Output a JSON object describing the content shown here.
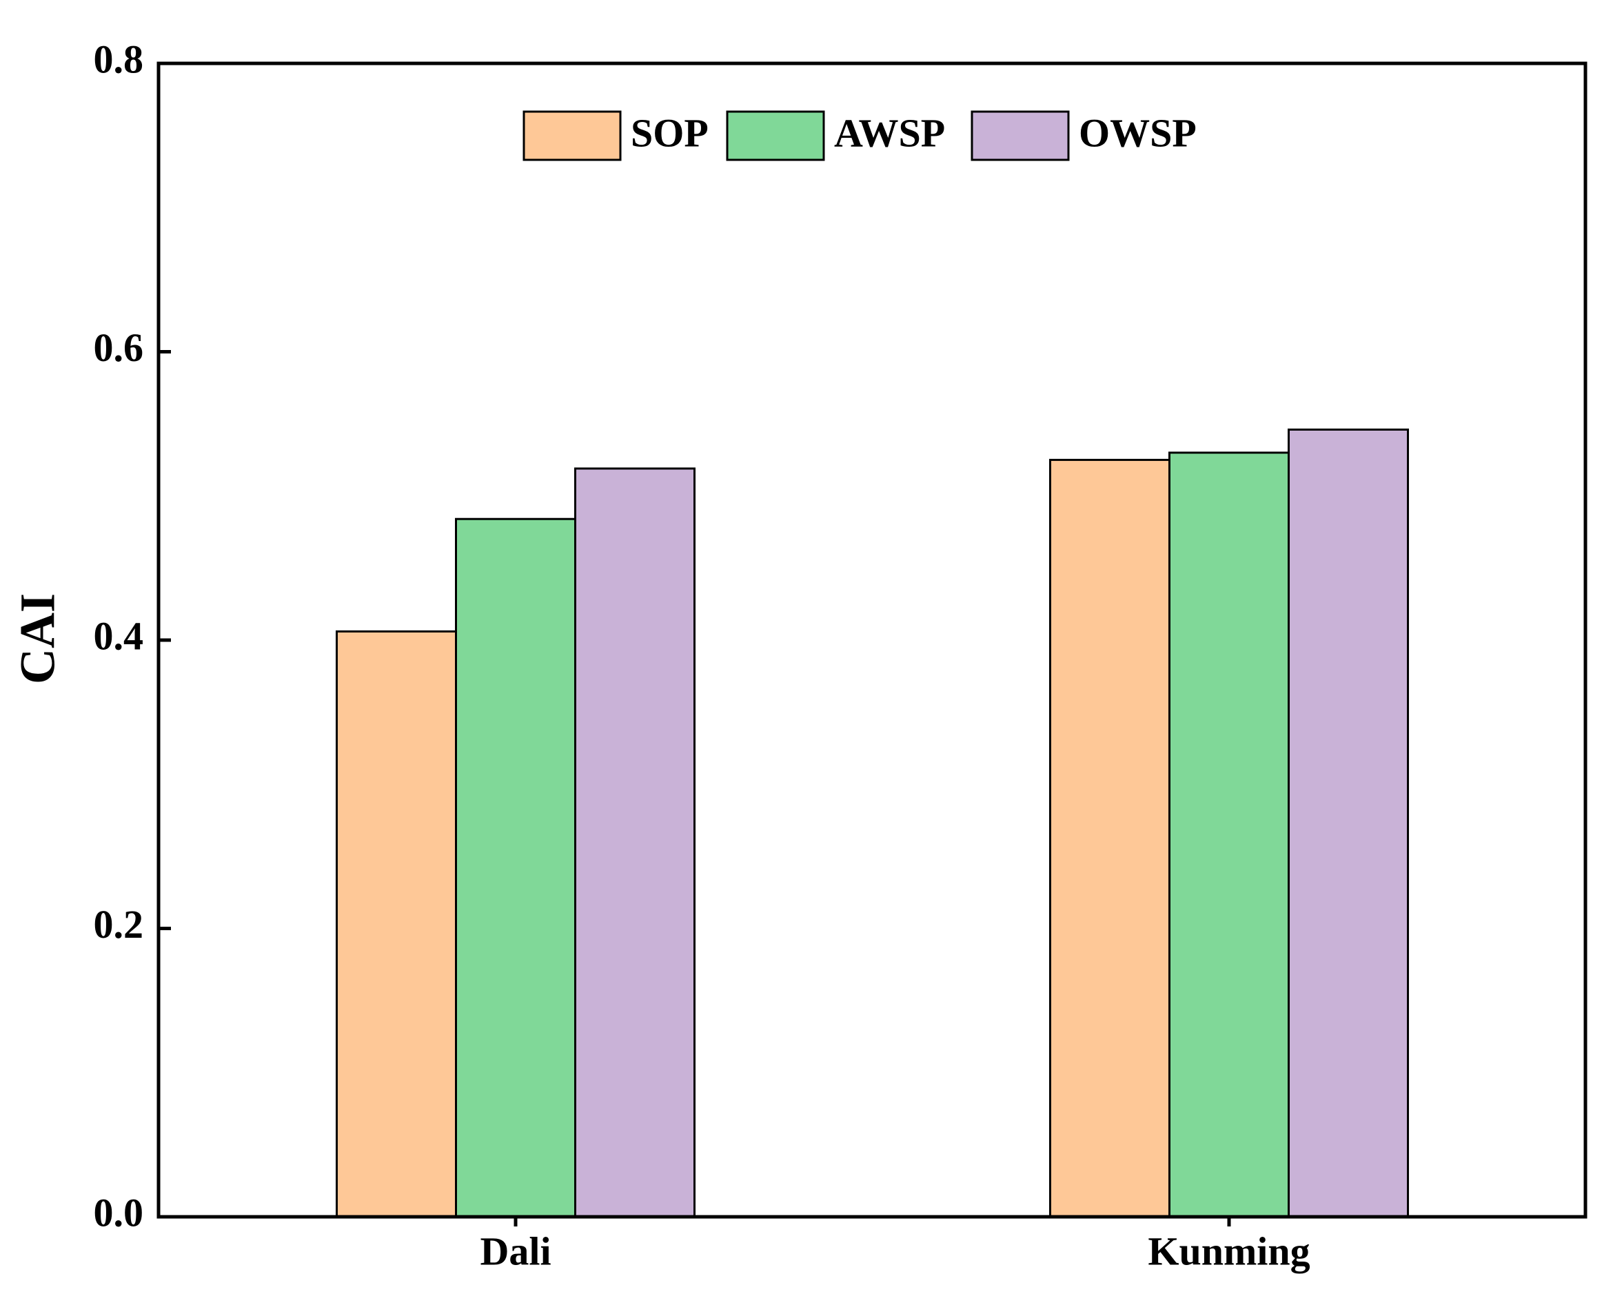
{
  "chart_data": {
    "type": "bar",
    "title": "",
    "xlabel": "",
    "ylabel": "CAI",
    "ylim": [
      0,
      0.8
    ],
    "yticks": [
      0.0,
      0.2,
      0.4,
      0.6,
      0.8
    ],
    "ytick_labels": [
      "0.0",
      "0.2",
      "0.4",
      "0.6",
      "0.8"
    ],
    "categories": [
      "Dali",
      "Kunming"
    ],
    "series": [
      {
        "name": "SOP",
        "color": "#FEC897",
        "values": [
          0.406,
          0.525
        ]
      },
      {
        "name": "AWSP",
        "color": "#80D898",
        "values": [
          0.484,
          0.53
        ]
      },
      {
        "name": "OWSP",
        "color": "#C9B2D7",
        "values": [
          0.519,
          0.546
        ]
      }
    ],
    "grid": false,
    "legend_position": "top-center",
    "legend_ncol": 3
  }
}
